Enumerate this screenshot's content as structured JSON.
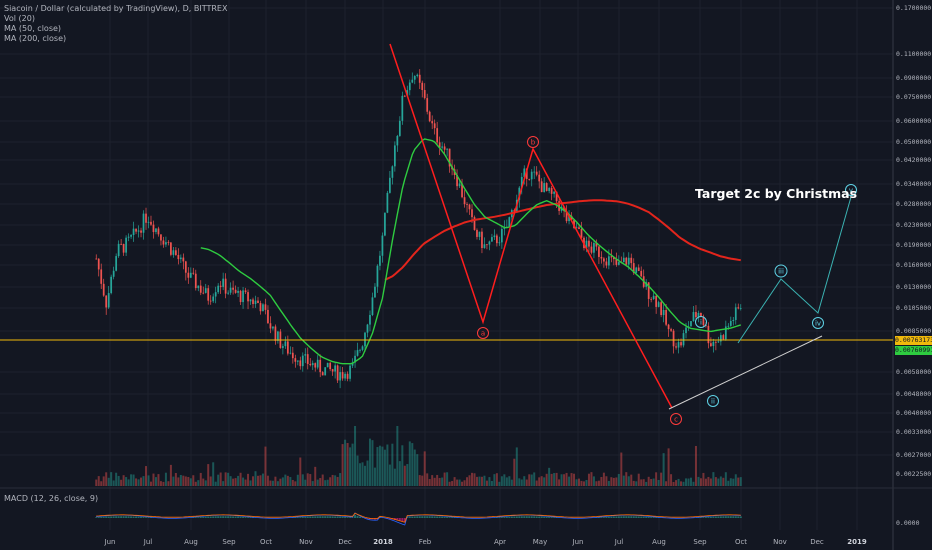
{
  "legend": {
    "title": "Siacoin / Dollar (calculated by TradingView), D, BITTREX",
    "vol": "Vol (20)",
    "ma50": "MA (50, close)",
    "ma200": "MA (200, close)",
    "macd": "MACD (12, 26, close, 9)"
  },
  "annotation": "Target 2c by Christmas",
  "price_tags": {
    "orange": "0.00763173",
    "green": "0.00760991"
  },
  "colors": {
    "background": "#131722",
    "up": "#26a69a",
    "down": "#ef5350",
    "ma50": "#2ecc40",
    "ma200": "#e3251c",
    "horizontal_line": "#f0b90b",
    "wave_lines": "#ff1e1e",
    "projection": "#3bb3b3",
    "trendline": "#d0d0d0"
  },
  "chart_data": {
    "type": "candlestick",
    "y_scale": "log",
    "y_axis_labels": [
      "0.1700000",
      "0.1100000",
      "0.0900000",
      "0.0750000",
      "0.0600000",
      "0.0500000",
      "0.0420000",
      "0.0340000",
      "0.0280000",
      "0.0230000",
      "0.0190000",
      "0.0160000",
      "0.0130000",
      "0.0105000",
      "0.0085000",
      "0.0058000",
      "0.0048000",
      "0.0040000",
      "0.0033000",
      "0.0027000",
      "0.0022500",
      "0.0000"
    ],
    "x_axis_labels": [
      {
        "label": "Jun",
        "bold": false
      },
      {
        "label": "Jul",
        "bold": false
      },
      {
        "label": "Aug",
        "bold": false
      },
      {
        "label": "Sep",
        "bold": false
      },
      {
        "label": "Oct",
        "bold": false
      },
      {
        "label": "Nov",
        "bold": false
      },
      {
        "label": "Dec",
        "bold": false
      },
      {
        "label": "2018",
        "bold": true
      },
      {
        "label": "Feb",
        "bold": false
      },
      {
        "label": "Apr",
        "bold": false
      },
      {
        "label": "May",
        "bold": false
      },
      {
        "label": "Jun",
        "bold": false
      },
      {
        "label": "Jul",
        "bold": false
      },
      {
        "label": "Aug",
        "bold": false
      },
      {
        "label": "Sep",
        "bold": false
      },
      {
        "label": "Oct",
        "bold": false
      },
      {
        "label": "Nov",
        "bold": false
      },
      {
        "label": "Dec",
        "bold": false
      },
      {
        "label": "2019",
        "bold": true
      }
    ],
    "horizontal_level": 0.0076,
    "wave_labels": [
      {
        "label": "a",
        "price": 0.0095,
        "style": "red"
      },
      {
        "label": "b",
        "price": 0.046,
        "style": "red"
      },
      {
        "label": "c",
        "price": 0.0039,
        "style": "red"
      },
      {
        "label": "i",
        "price": 0.0078,
        "style": "cyan"
      },
      {
        "label": "ii",
        "price": 0.0044,
        "style": "cyan"
      },
      {
        "label": "iii",
        "price": 0.0142,
        "style": "cyan"
      },
      {
        "label": "iv",
        "price": 0.0093,
        "style": "cyan"
      },
      {
        "label": "v",
        "price": 0.029,
        "style": "cyan"
      }
    ],
    "price_path": [
      0.012,
      0.0075,
      0.013,
      0.014,
      0.016,
      0.019,
      0.016,
      0.014,
      0.012,
      0.01,
      0.009,
      0.008,
      0.0095,
      0.0085,
      0.0082,
      0.0078,
      0.0075,
      0.006,
      0.005,
      0.0045,
      0.0042,
      0.004,
      0.0038,
      0.0037,
      0.0036,
      0.0038,
      0.005,
      0.008,
      0.015,
      0.035,
      0.065,
      0.085,
      0.065,
      0.045,
      0.038,
      0.03,
      0.022,
      0.016,
      0.0135,
      0.0145,
      0.016,
      0.022,
      0.03,
      0.028,
      0.024,
      0.022,
      0.018,
      0.016,
      0.0135,
      0.013,
      0.012,
      0.011,
      0.012,
      0.01,
      0.0085,
      0.0075,
      0.0055,
      0.0048,
      0.0062,
      0.007,
      0.005,
      0.0052,
      0.0062,
      0.0073
    ],
    "ma50_path": [
      null,
      null,
      null,
      null,
      null,
      null,
      null,
      null,
      null,
      null,
      0.0135,
      0.0132,
      0.0125,
      0.0115,
      0.0105,
      0.0098,
      0.009,
      0.0082,
      0.007,
      0.006,
      0.0052,
      0.0047,
      0.0043,
      0.0041,
      0.004,
      0.004,
      0.0043,
      0.0055,
      0.008,
      0.015,
      0.026,
      0.037,
      0.042,
      0.041,
      0.036,
      0.03,
      0.025,
      0.021,
      0.0185,
      0.0175,
      0.0165,
      0.017,
      0.019,
      0.021,
      0.022,
      0.021,
      0.0195,
      0.0175,
      0.0155,
      0.014,
      0.0128,
      0.0118,
      0.011,
      0.01,
      0.009,
      0.008,
      0.007,
      0.0062,
      0.0058,
      0.0057,
      0.0056,
      0.0057,
      0.0058,
      0.006
    ],
    "ma200_path": [
      null,
      null,
      null,
      null,
      null,
      null,
      null,
      null,
      null,
      null,
      null,
      null,
      null,
      null,
      null,
      null,
      null,
      null,
      null,
      null,
      null,
      null,
      null,
      null,
      null,
      null,
      null,
      null,
      0.0095,
      0.01,
      0.011,
      0.0125,
      0.014,
      0.015,
      0.016,
      0.0168,
      0.0175,
      0.018,
      0.0183,
      0.0186,
      0.019,
      0.0195,
      0.02,
      0.0205,
      0.021,
      0.0213,
      0.0215,
      0.0218,
      0.022,
      0.0221,
      0.022,
      0.0218,
      0.0213,
      0.0205,
      0.0195,
      0.018,
      0.0165,
      0.015,
      0.014,
      0.0133,
      0.0128,
      0.0123,
      0.012,
      0.0118
    ]
  }
}
